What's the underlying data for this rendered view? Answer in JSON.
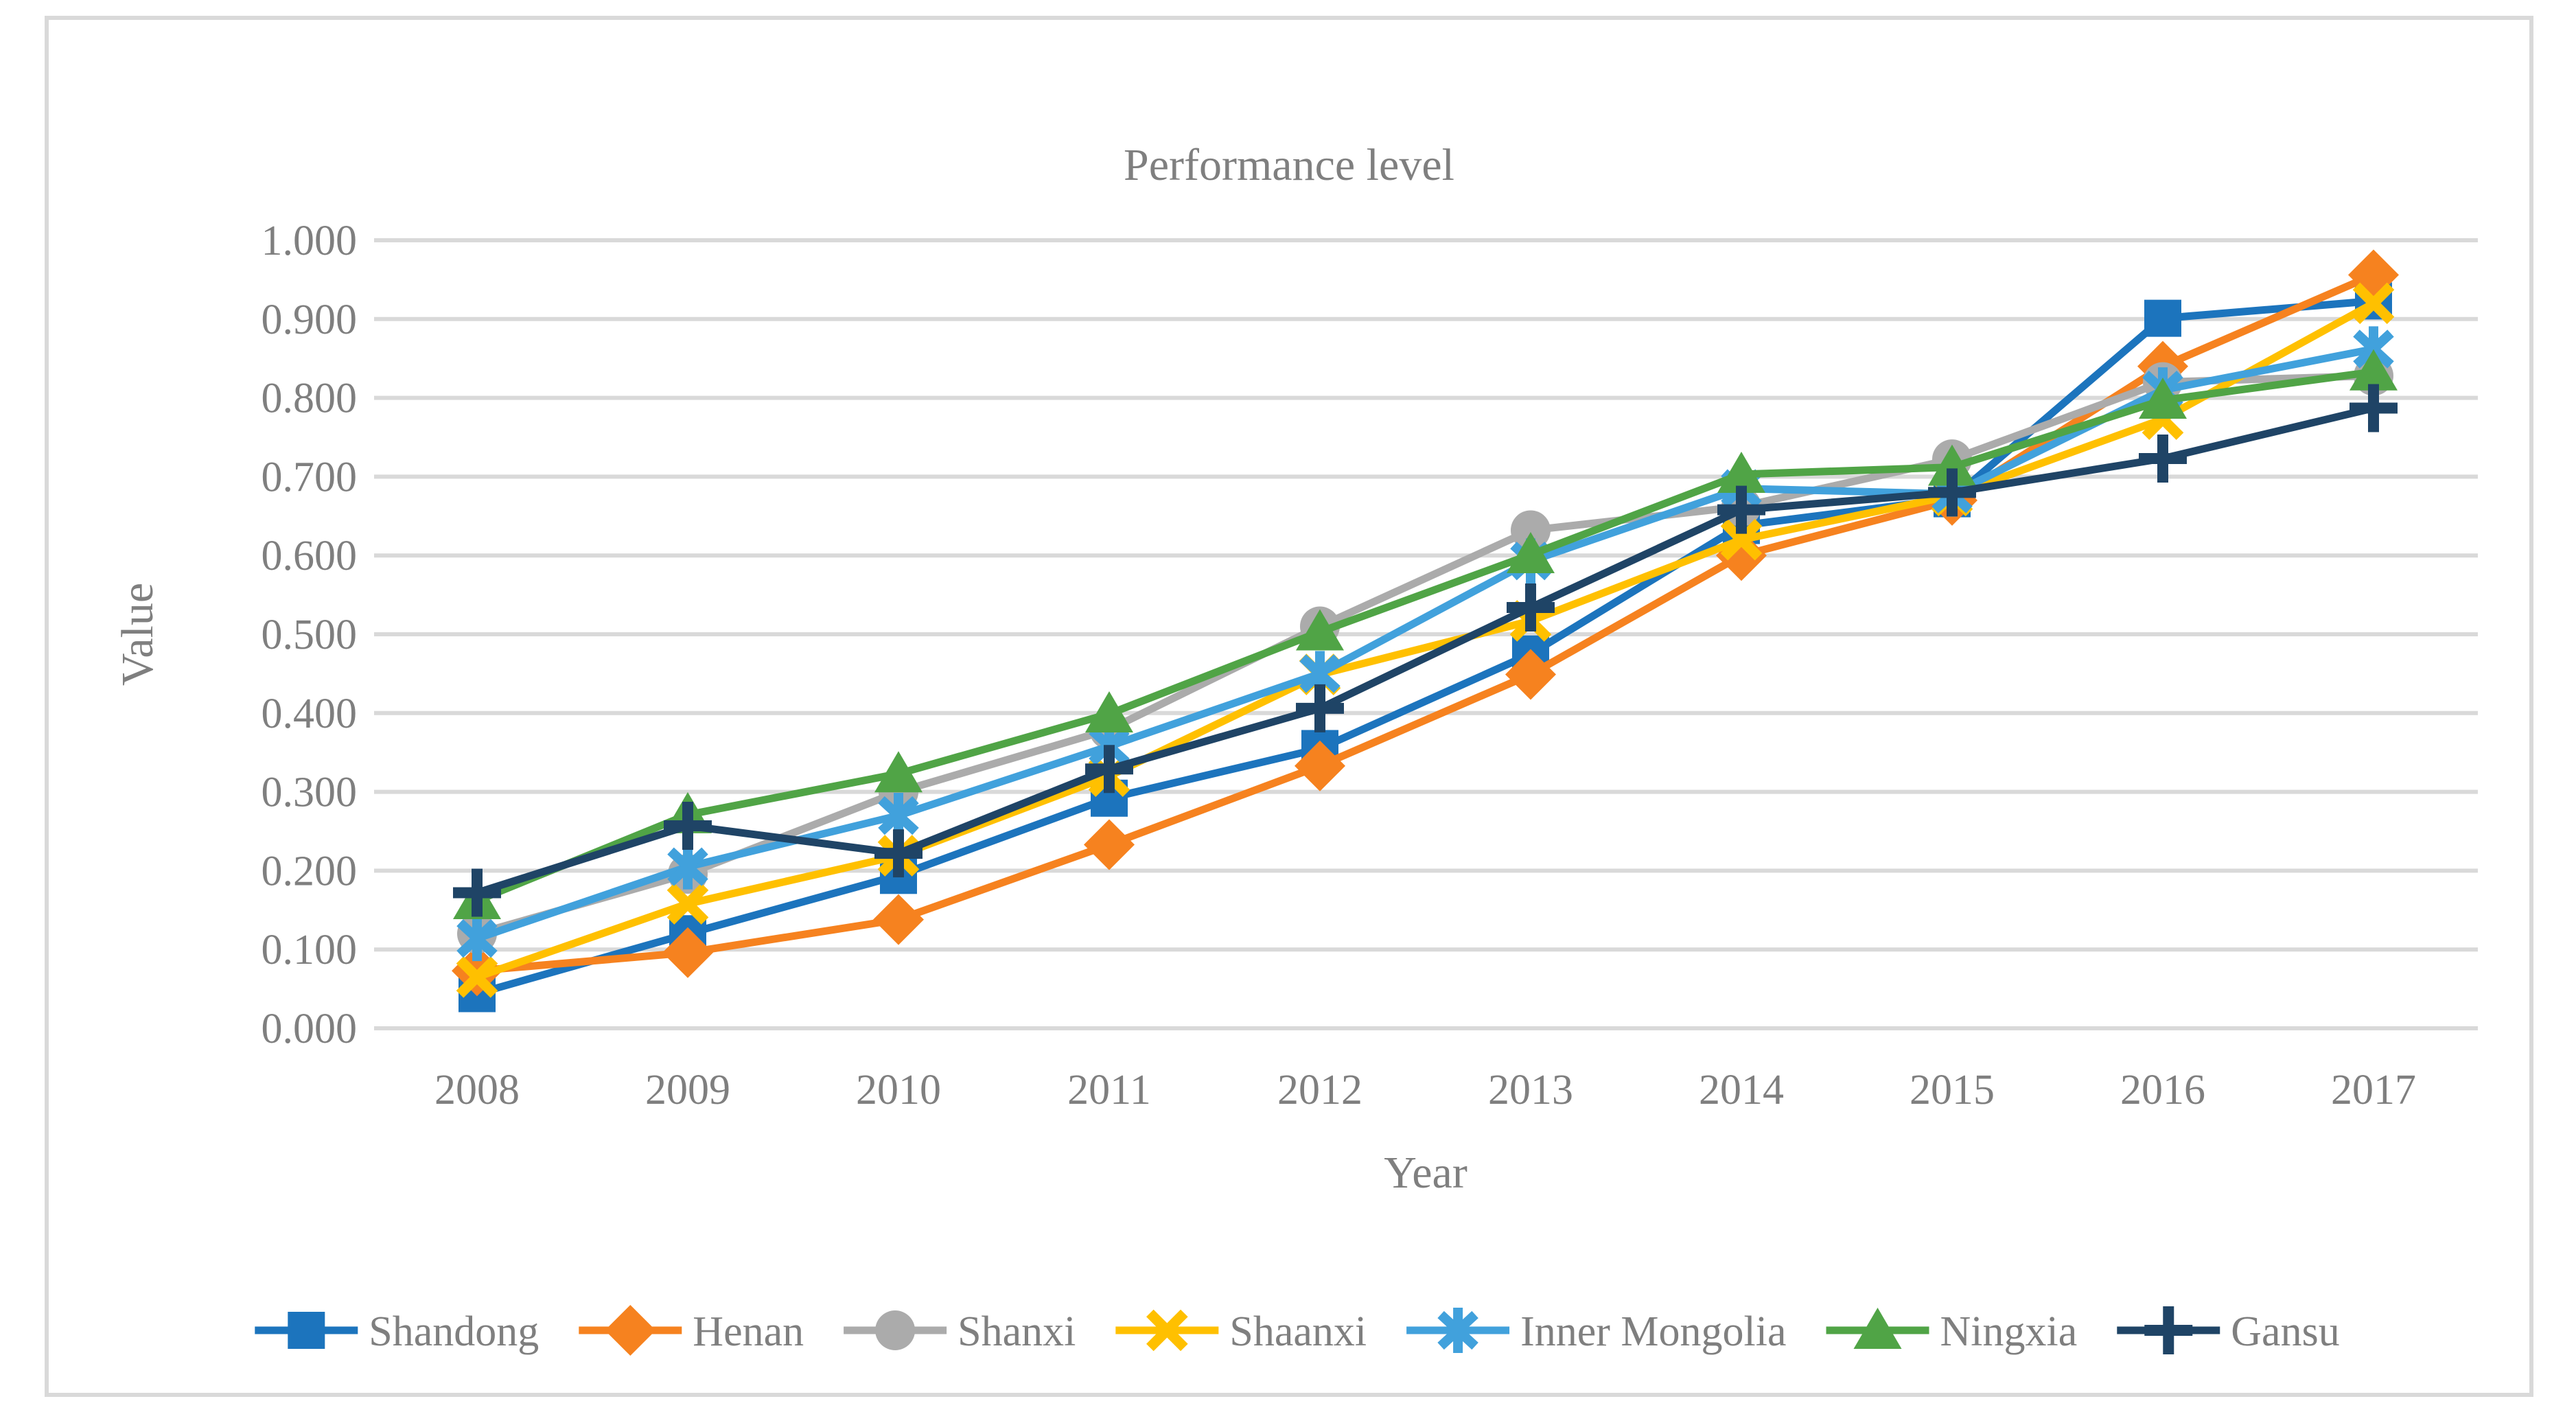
{
  "chart_data": {
    "type": "line",
    "title": "Performance level",
    "xlabel": "Year",
    "ylabel": "Value",
    "categories": [
      "2008",
      "2009",
      "2010",
      "2011",
      "2012",
      "2013",
      "2014",
      "2015",
      "2016",
      "2017"
    ],
    "ylim": [
      0.0,
      1.0
    ],
    "ytick_step": 0.1,
    "ytick_format": "0.000",
    "grid": "horizontal",
    "legend_position": "bottom",
    "series": [
      {
        "name": "Shandong",
        "color": "#1C74BD",
        "marker": "square",
        "values": [
          0.044,
          0.12,
          0.194,
          0.292,
          0.355,
          0.475,
          0.638,
          0.672,
          0.901,
          0.923
        ]
      },
      {
        "name": "Henan",
        "color": "#F6821F",
        "marker": "diamond",
        "values": [
          0.073,
          0.096,
          0.138,
          0.233,
          0.333,
          0.449,
          0.6,
          0.67,
          0.84,
          0.956
        ]
      },
      {
        "name": "Shanxi",
        "color": "#ABABAB",
        "marker": "circle",
        "values": [
          0.12,
          0.196,
          0.3,
          0.379,
          0.51,
          0.632,
          0.662,
          0.722,
          0.82,
          0.828
        ]
      },
      {
        "name": "Shaanxi",
        "color": "#FFC000",
        "marker": "x",
        "values": [
          0.065,
          0.158,
          0.219,
          0.32,
          0.449,
          0.517,
          0.62,
          0.676,
          0.773,
          0.92
        ]
      },
      {
        "name": "Inner Mongolia",
        "color": "#41A1DC",
        "marker": "asterisk",
        "values": [
          0.114,
          0.205,
          0.27,
          0.358,
          0.45,
          0.593,
          0.685,
          0.678,
          0.81,
          0.862
        ]
      },
      {
        "name": "Ningxia",
        "color": "#50A446",
        "marker": "triangle",
        "values": [
          0.162,
          0.271,
          0.323,
          0.399,
          0.503,
          0.601,
          0.703,
          0.712,
          0.797,
          0.833
        ]
      },
      {
        "name": "Gansu",
        "color": "#1F4466",
        "marker": "plus",
        "values": [
          0.172,
          0.257,
          0.222,
          0.329,
          0.406,
          0.534,
          0.658,
          0.68,
          0.723,
          0.787
        ]
      }
    ]
  },
  "styles": {
    "text_color": "#7F7F7F",
    "grid_color": "#D9D9D9",
    "border_color": "#D9D9D9",
    "background": "#FFFFFF"
  }
}
